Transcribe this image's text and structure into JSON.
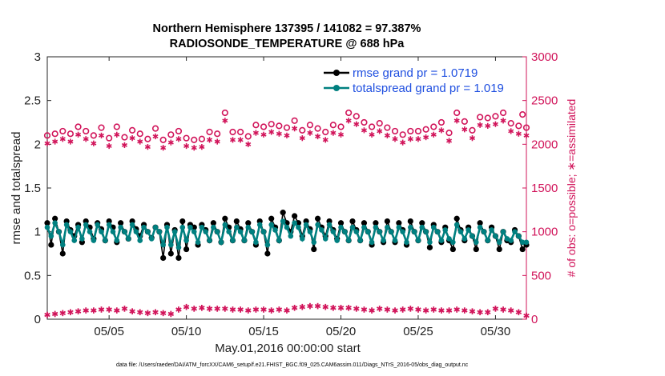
{
  "chart_data": {
    "type": "line",
    "title_line1": "Northern Hemisphere 137395 / 141082 = 97.387%",
    "title_line2": "RADIOSONDE_TEMPERATURE @ 688 hPa",
    "xlabel": "May.01,2016 00:00:00 start",
    "ylabel_left": "rmse and totalspread",
    "ylabel_right": "# of obs: o=possible; ∗=assimilated",
    "footer": "data file: /Users/raeder/DAI/ATM_forcXX/CAM6_setup/f.e21.FHIST_BGC.f09_025.CAM6assim.011/Diags_NTrS_2016-05/obs_diag_output.nc",
    "xlim": [
      1,
      32
    ],
    "x_ticks": [
      5,
      10,
      15,
      20,
      25,
      30
    ],
    "x_tick_labels": [
      "05/05",
      "05/10",
      "05/15",
      "05/20",
      "05/25",
      "05/30"
    ],
    "ylim_left": [
      0,
      3
    ],
    "y_ticks_left": [
      "0",
      "0.5",
      "1",
      "1.5",
      "2",
      "2.5",
      "3"
    ],
    "ylim_right": [
      0,
      3000
    ],
    "y_ticks_right": [
      "0",
      "500",
      "1000",
      "1500",
      "2000",
      "2500",
      "3000"
    ],
    "legend_position": "top-right",
    "legend": [
      {
        "name": "rmse grand pr = 1.0719",
        "color": "#000000"
      },
      {
        "name": "totalspread grand pr = 1.019",
        "color": "#008080"
      }
    ],
    "x": [
      1.0,
      1.25,
      1.5,
      1.75,
      2.0,
      2.25,
      2.5,
      2.75,
      3.0,
      3.25,
      3.5,
      3.75,
      4.0,
      4.25,
      4.5,
      4.75,
      5.0,
      5.25,
      5.5,
      5.75,
      6.0,
      6.25,
      6.5,
      6.75,
      7.0,
      7.25,
      7.5,
      7.75,
      8.0,
      8.25,
      8.5,
      8.75,
      9.0,
      9.25,
      9.5,
      9.75,
      10.0,
      10.25,
      10.5,
      10.75,
      11.0,
      11.25,
      11.5,
      11.75,
      12.0,
      12.25,
      12.5,
      12.75,
      13.0,
      13.25,
      13.5,
      13.75,
      14.0,
      14.25,
      14.5,
      14.75,
      15.0,
      15.25,
      15.5,
      15.75,
      16.0,
      16.25,
      16.5,
      16.75,
      17.0,
      17.25,
      17.5,
      17.75,
      18.0,
      18.25,
      18.5,
      18.75,
      19.0,
      19.25,
      19.5,
      19.75,
      20.0,
      20.25,
      20.5,
      20.75,
      21.0,
      21.25,
      21.5,
      21.75,
      22.0,
      22.25,
      22.5,
      22.75,
      23.0,
      23.25,
      23.5,
      23.75,
      24.0,
      24.25,
      24.5,
      24.75,
      25.0,
      25.25,
      25.5,
      25.75,
      26.0,
      26.25,
      26.5,
      26.75,
      27.0,
      27.25,
      27.5,
      27.75,
      28.0,
      28.25,
      28.5,
      28.75,
      29.0,
      29.25,
      29.5,
      29.75,
      30.0,
      30.25,
      30.5,
      30.75,
      31.0,
      31.25,
      31.5,
      31.75,
      32.0
    ],
    "series": [
      {
        "name": "rmse",
        "axis": "left",
        "color": "#000000",
        "values": [
          1.1,
          0.85,
          1.15,
          1.0,
          0.75,
          1.12,
          1.02,
          0.95,
          1.08,
          0.88,
          1.12,
          1.05,
          0.92,
          1.1,
          1.03,
          0.9,
          1.12,
          1.05,
          0.88,
          1.1,
          1.0,
          0.92,
          1.12,
          1.03,
          0.95,
          1.08,
          1.0,
          0.93,
          1.05,
          1.0,
          0.7,
          1.08,
          0.75,
          1.02,
          0.7,
          1.12,
          0.8,
          1.08,
          1.05,
          0.85,
          1.08,
          1.02,
          0.9,
          1.1,
          1.0,
          0.88,
          1.15,
          1.05,
          0.9,
          1.12,
          1.03,
          0.9,
          1.1,
          1.0,
          0.85,
          1.12,
          1.0,
          0.75,
          1.15,
          1.05,
          0.9,
          1.22,
          1.1,
          1.0,
          1.18,
          1.1,
          0.95,
          1.12,
          1.03,
          0.8,
          1.15,
          1.05,
          0.95,
          1.12,
          1.02,
          0.92,
          1.1,
          1.0,
          0.9,
          1.12,
          1.02,
          0.9,
          1.1,
          1.0,
          0.85,
          1.1,
          1.0,
          0.88,
          1.12,
          1.0,
          0.88,
          1.1,
          1.02,
          0.85,
          1.12,
          1.0,
          0.9,
          1.1,
          1.0,
          0.82,
          1.08,
          1.0,
          0.88,
          1.05,
          0.9,
          0.8,
          1.15,
          1.02,
          0.9,
          1.05,
          0.95,
          0.8,
          1.1,
          1.0,
          0.9,
          1.05,
          0.95,
          0.8,
          1.0,
          0.9,
          0.88,
          1.02,
          0.95,
          0.8,
          0.85
        ],
        "marker": "circle"
      },
      {
        "name": "totalspread",
        "axis": "left",
        "color": "#008080",
        "values": [
          1.05,
          0.95,
          1.1,
          1.0,
          0.85,
          1.08,
          1.0,
          0.9,
          1.05,
          0.92,
          1.08,
          1.0,
          0.9,
          1.08,
          1.0,
          0.9,
          1.08,
          1.0,
          0.9,
          1.05,
          1.0,
          0.92,
          1.08,
          1.0,
          0.9,
          1.05,
          1.0,
          0.92,
          1.05,
          1.0,
          0.85,
          1.05,
          0.85,
          1.0,
          0.82,
          1.05,
          0.9,
          1.05,
          1.0,
          0.88,
          1.05,
          1.0,
          0.9,
          1.05,
          1.0,
          0.88,
          1.08,
          1.0,
          0.9,
          1.05,
          1.0,
          0.9,
          1.05,
          1.0,
          0.88,
          1.08,
          1.0,
          0.85,
          1.08,
          1.02,
          0.9,
          1.12,
          1.05,
          0.95,
          1.1,
          1.05,
          0.92,
          1.08,
          1.0,
          0.88,
          1.08,
          1.02,
          0.92,
          1.08,
          1.0,
          0.9,
          1.05,
          1.0,
          0.9,
          1.05,
          1.0,
          0.9,
          1.05,
          1.0,
          0.88,
          1.05,
          1.0,
          0.9,
          1.05,
          1.0,
          0.9,
          1.05,
          1.0,
          0.88,
          1.05,
          1.0,
          0.9,
          1.05,
          1.0,
          0.88,
          1.05,
          1.0,
          0.9,
          1.02,
          0.92,
          0.88,
          1.08,
          1.0,
          0.92,
          1.02,
          0.95,
          0.88,
          1.05,
          1.0,
          0.9,
          1.02,
          0.95,
          0.88,
          1.0,
          0.92,
          0.9,
          1.0,
          0.95,
          0.88,
          0.88
        ],
        "marker": "circle"
      }
    ],
    "obs_x": [
      1.0,
      1.5,
      2.0,
      2.5,
      3.0,
      3.5,
      4.0,
      4.5,
      5.0,
      5.5,
      6.0,
      6.5,
      7.0,
      7.5,
      8.0,
      8.5,
      9.0,
      9.5,
      10.0,
      10.5,
      11.0,
      11.5,
      12.0,
      12.5,
      13.0,
      13.5,
      14.0,
      14.5,
      15.0,
      15.5,
      16.0,
      16.5,
      17.0,
      17.5,
      18.0,
      18.5,
      19.0,
      19.5,
      20.0,
      20.5,
      21.0,
      21.5,
      22.0,
      22.5,
      23.0,
      23.5,
      24.0,
      24.5,
      25.0,
      25.5,
      26.0,
      26.5,
      27.0,
      27.5,
      28.0,
      28.5,
      29.0,
      29.5,
      30.0,
      30.5,
      31.0,
      31.5,
      32.0
    ],
    "obs_series": [
      {
        "name": "possible",
        "axis": "right",
        "color": "#d1145a",
        "marker": "o",
        "values": [
          2100,
          2120,
          2150,
          2120,
          2200,
          2150,
          2100,
          2190,
          2070,
          2200,
          2080,
          2160,
          2120,
          2060,
          2180,
          2050,
          2110,
          2150,
          2070,
          2050,
          2060,
          2140,
          2120,
          2360,
          2140,
          2140,
          2090,
          2220,
          2200,
          2230,
          2210,
          2190,
          2270,
          2160,
          2220,
          2180,
          2140,
          2220,
          2200,
          2360,
          2320,
          2250,
          2200,
          2240,
          2190,
          2150,
          2110,
          2150,
          2150,
          2170,
          2200,
          2250,
          2130,
          2360,
          2260,
          2160,
          2310,
          2300,
          2320,
          2360,
          2240,
          2210,
          2190
        ],
        "values_cont": [
          2340
        ]
      },
      {
        "name": "assimilated",
        "axis": "right",
        "color": "#d1145a",
        "marker": "*",
        "values": [
          50,
          60,
          70,
          80,
          90,
          100,
          100,
          110,
          110,
          100,
          120,
          90,
          80,
          70,
          80,
          70,
          60,
          110,
          140,
          120,
          130,
          120,
          120,
          120,
          110,
          110,
          100,
          110,
          110,
          100,
          110,
          100,
          130,
          140,
          150,
          150,
          140,
          130,
          130,
          130,
          120,
          110,
          100,
          120,
          110,
          100,
          110,
          120,
          110,
          100,
          110,
          100,
          100,
          110,
          100,
          90,
          80,
          80,
          120,
          110,
          100,
          80,
          40
        ]
      }
    ]
  }
}
